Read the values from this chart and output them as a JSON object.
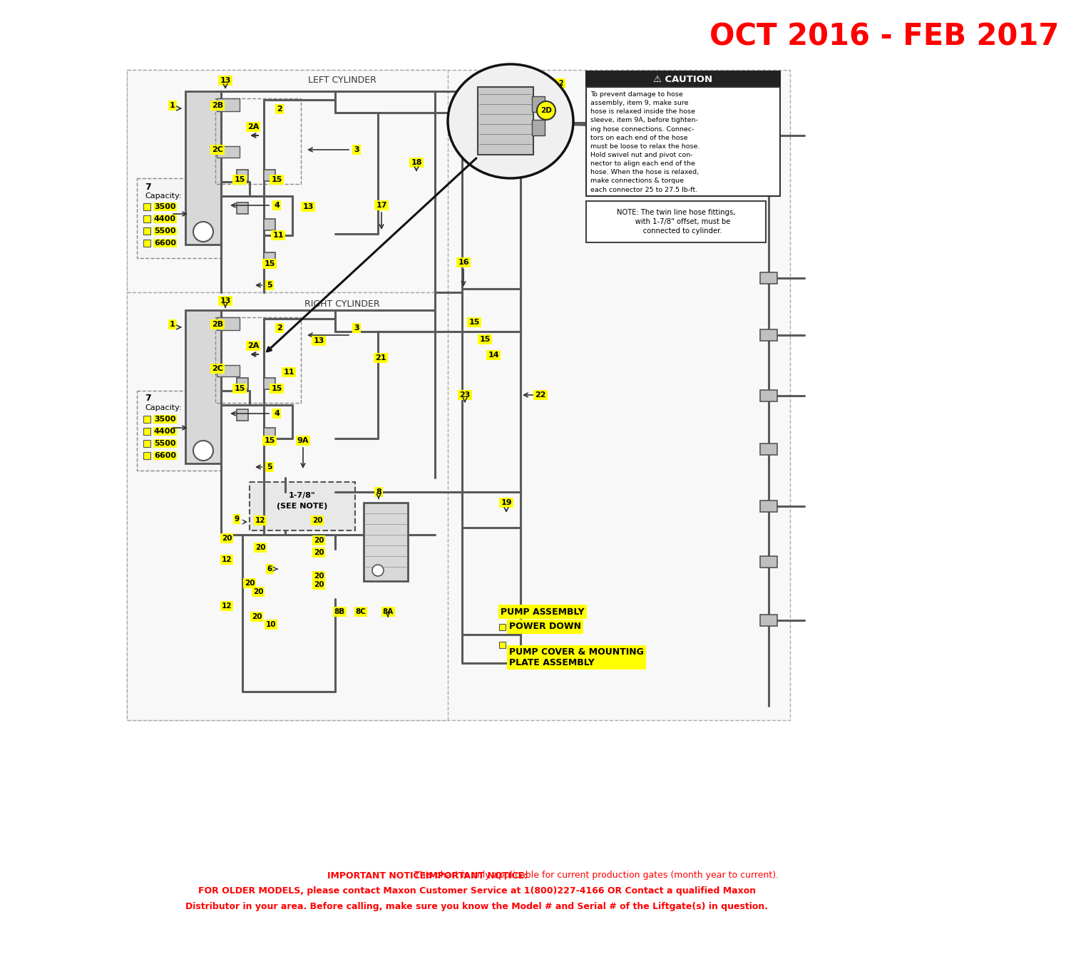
{
  "title": "OCT 2016 - FEB 2017",
  "title_color": "#FF0000",
  "title_fontsize": 30,
  "bg_color": "#FFFFFF",
  "caution_title": "⚠ CAUTION",
  "caution_text": "To prevent damage to hose\nassembly, item 9, make sure\nhose is relaxed inside the hose\nsleeve, item 9A, before tighten-\ning hose connections. Connec-\ntors on each end of the hose\nmust be loose to relax the hose.\nHold swivel nut and pivot con-\nnector to align each end of the\nhose. When the hose is relaxed,\nmake connections & torque\neach connector 25 to 27.5 lb-ft.",
  "note_text": "NOTE: The twin line hose fittings,\n      with 1-7/8\" offset, must be\n      connected to cylinder.",
  "left_cylinder_label": "LEFT CYLINDER",
  "right_cylinder_label": "RIGHT CYLINDER",
  "capacity_items": [
    "3500",
    "4400",
    "5500",
    "6600"
  ],
  "pump_assembly_label": "PUMP ASSEMBLY",
  "power_down_label": "POWER DOWN",
  "pump_cover_label": "PUMP COVER & MOUNTING\nPLATE ASSEMBLY",
  "footer_line1_bold": "IMPORTANT NOTICE:",
  "footer_line1_normal": " This chart is only applicable for current production gates (month year to current).",
  "footer_line2_bold": "FOR OLDER MODELS, please contact Maxon Customer Service at ",
  "footer_line2_bold2": "1(800)227-4166 OR Contact a qualified Maxon",
  "footer_line3_normal": "Distributor in your area. ",
  "footer_line3_bold": "Before calling",
  "footer_line3_normal2": ", make sure you ",
  "footer_line3_bold2": "know the Model # and Serial #",
  "footer_line3_normal3": " of the Liftgate(s) in question.",
  "footer_color": "#FF0000"
}
